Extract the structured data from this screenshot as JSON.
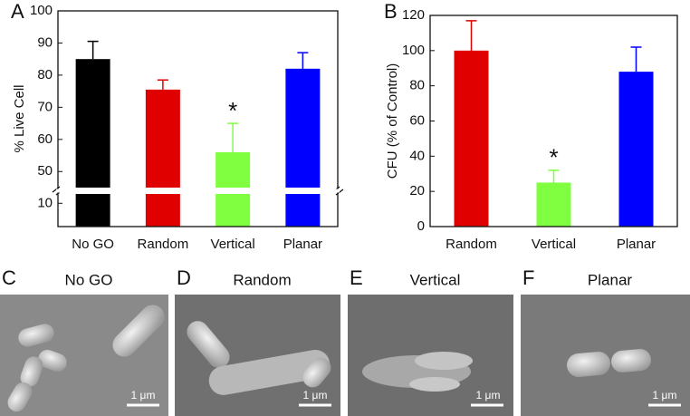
{
  "chart_data": [
    {
      "type": "bar",
      "label": "A",
      "y_label": "% Live Cell",
      "categories": [
        "No GO",
        "Random",
        "Vertical",
        "Planar"
      ],
      "values": [
        85,
        75.5,
        56,
        82
      ],
      "errors": [
        5.5,
        3,
        9,
        5
      ],
      "colors": [
        "#000000",
        "#e00000",
        "#80ff40",
        "#0000ff"
      ],
      "annotations": [
        null,
        null,
        "*",
        null
      ],
      "ylim": [
        0,
        100
      ],
      "y_break": [
        14,
        45
      ],
      "yticks": [
        10,
        50,
        60,
        70,
        80,
        90,
        100
      ]
    },
    {
      "type": "bar",
      "label": "B",
      "y_label": "CFU (% of Control)",
      "categories": [
        "Random",
        "Vertical",
        "Planar"
      ],
      "values": [
        100,
        25,
        88
      ],
      "errors": [
        17,
        7,
        14
      ],
      "colors": [
        "#e00000",
        "#80ff40",
        "#0000ff"
      ],
      "annotations": [
        null,
        "*",
        null
      ],
      "ylim": [
        0,
        120
      ],
      "yticks": [
        0,
        20,
        40,
        60,
        80,
        100,
        120
      ]
    }
  ],
  "images": [
    {
      "label": "C",
      "title": "No GO",
      "scale": "1 μm"
    },
    {
      "label": "D",
      "title": "Random",
      "scale": "1 μm"
    },
    {
      "label": "E",
      "title": "Vertical",
      "scale": "1 μm"
    },
    {
      "label": "F",
      "title": "Planar",
      "scale": "1 μm"
    }
  ]
}
